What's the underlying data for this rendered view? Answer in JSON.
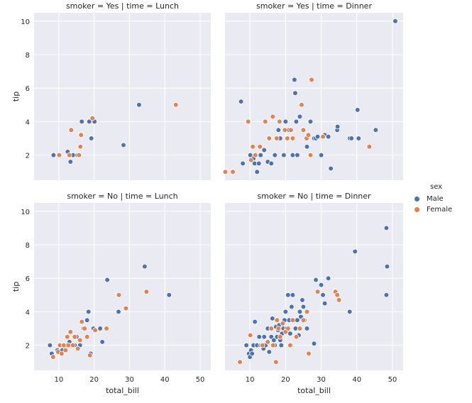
{
  "chart_data": {
    "type": "scatter",
    "xlabel": "total_bill",
    "ylabel": "tip",
    "xlim": [
      3,
      53
    ],
    "ylim": [
      0.5,
      10.5
    ],
    "xticks": [
      10,
      20,
      30,
      40,
      50
    ],
    "yticks": [
      2,
      4,
      6,
      8,
      10
    ],
    "grid": true,
    "legend": {
      "title": "sex",
      "placement": "right",
      "entries": [
        {
          "name": "Male",
          "color": "#4c72b0"
        },
        {
          "name": "Female",
          "color": "#dd8452"
        }
      ]
    },
    "panels": [
      {
        "title": "smoker = Yes | time = Lunch",
        "series": [
          {
            "name": "Male",
            "points": [
              [
                8.5,
                2.0
              ],
              [
                12.5,
                2.2
              ],
              [
                14,
                2.0
              ],
              [
                13.3,
                1.6
              ],
              [
                15.3,
                2.0
              ],
              [
                16.5,
                4.0
              ],
              [
                18.6,
                4.0
              ],
              [
                19.2,
                3.0
              ],
              [
                20.1,
                4.0
              ],
              [
                28.3,
                2.6
              ],
              [
                32.7,
                5.0
              ]
            ]
          },
          {
            "name": "Female",
            "points": [
              [
                10.1,
                2.0
              ],
              [
                13.5,
                3.5
              ],
              [
                13.0,
                2.0
              ],
              [
                15.7,
                2.0
              ],
              [
                16.1,
                2.5
              ],
              [
                16.3,
                3.2
              ],
              [
                19.5,
                4.2
              ],
              [
                43.1,
                5.0
              ]
            ]
          }
        ]
      },
      {
        "title": "smoker = Yes | time = Dinner",
        "series": [
          {
            "name": "Male",
            "points": [
              [
                7.5,
                5.2
              ],
              [
                8.0,
                1.5
              ],
              [
                10.1,
                2.0
              ],
              [
                11.0,
                1.8
              ],
              [
                11.3,
                1.5
              ],
              [
                12.0,
                1.0
              ],
              [
                12.5,
                1.5
              ],
              [
                13.0,
                2.0
              ],
              [
                14.0,
                2.3
              ],
              [
                15.0,
                1.6
              ],
              [
                15.5,
                3.0
              ],
              [
                16.0,
                1.5
              ],
              [
                17.0,
                2.0
              ],
              [
                18.0,
                3.5
              ],
              [
                18.5,
                3.0
              ],
              [
                19.5,
                2.0
              ],
              [
                20.0,
                4.0
              ],
              [
                21.0,
                3.5
              ],
              [
                22.0,
                2.0
              ],
              [
                22.5,
                6.5
              ],
              [
                22.7,
                5.7
              ],
              [
                23.0,
                4.0
              ],
              [
                23.3,
                2.0
              ],
              [
                24.0,
                4.3
              ],
              [
                25.0,
                3.5
              ],
              [
                26.0,
                2.5
              ],
              [
                27.0,
                4.0
              ],
              [
                28.0,
                3.0
              ],
              [
                28.5,
                3.0
              ],
              [
                29.0,
                3.1
              ],
              [
                30.0,
                2.0
              ],
              [
                31.0,
                3.2
              ],
              [
                32.0,
                3.1
              ],
              [
                32.7,
                1.2
              ],
              [
                34.5,
                3.5
              ],
              [
                34.6,
                3.7
              ],
              [
                38.0,
                3.0
              ],
              [
                38.5,
                3.0
              ],
              [
                40.2,
                4.7
              ],
              [
                40.5,
                3.0
              ],
              [
                45.3,
                3.5
              ],
              [
                50.8,
                10.0
              ]
            ]
          },
          {
            "name": "Female",
            "points": [
              [
                3.1,
                1.0
              ],
              [
                5.2,
                1.0
              ],
              [
                9.5,
                4.0
              ],
              [
                10.3,
                1.7
              ],
              [
                10.8,
                2.5
              ],
              [
                11.5,
                2.0
              ],
              [
                12.8,
                2.5
              ],
              [
                14.3,
                4.0
              ],
              [
                15.4,
                3.0
              ],
              [
                16.4,
                4.3
              ],
              [
                17.5,
                3.0
              ],
              [
                18.3,
                4.0
              ],
              [
                19.8,
                3.5
              ],
              [
                20.5,
                3.0
              ],
              [
                21.5,
                3.5
              ],
              [
                22.0,
                3.0
              ],
              [
                24.5,
                5.0
              ],
              [
                25.0,
                3.5
              ],
              [
                25.9,
                3.0
              ],
              [
                26.4,
                3.2
              ],
              [
                27.0,
                2.0
              ],
              [
                27.3,
                6.5
              ],
              [
                30.5,
                3.1
              ],
              [
                43.5,
                2.5
              ]
            ]
          }
        ]
      },
      {
        "title": "smoker = No | time = Lunch",
        "series": [
          {
            "name": "Male",
            "points": [
              [
                7.5,
                2.0
              ],
              [
                8.0,
                1.5
              ],
              [
                9.6,
                1.7
              ],
              [
                10.3,
                2.0
              ],
              [
                11.0,
                1.7
              ],
              [
                12.0,
                2.0
              ],
              [
                13.0,
                2.2
              ],
              [
                13.8,
                2.0
              ],
              [
                14.5,
                2.0
              ],
              [
                15.0,
                2.5
              ],
              [
                16.0,
                2.0
              ],
              [
                17.0,
                3.0
              ],
              [
                18.0,
                3.5
              ],
              [
                18.4,
                4.0
              ],
              [
                19.0,
                1.5
              ],
              [
                19.8,
                3.0
              ],
              [
                20.5,
                2.9
              ],
              [
                21.7,
                3.0
              ],
              [
                22.3,
                2.2
              ],
              [
                23.7,
                5.9
              ],
              [
                26.9,
                4.0
              ],
              [
                34.3,
                6.7
              ],
              [
                41.2,
                5.0
              ]
            ]
          },
          {
            "name": "Female",
            "points": [
              [
                8.4,
                1.3
              ],
              [
                9.8,
                1.6
              ],
              [
                10.3,
                2.0
              ],
              [
                10.8,
                1.5
              ],
              [
                11.4,
                2.0
              ],
              [
                11.9,
                1.7
              ],
              [
                12.4,
                2.5
              ],
              [
                12.7,
                2.0
              ],
              [
                13.3,
                2.8
              ],
              [
                14.0,
                2.0
              ],
              [
                14.5,
                2.5
              ],
              [
                15.4,
                1.8
              ],
              [
                16.0,
                2.3
              ],
              [
                16.5,
                3.4
              ],
              [
                17.3,
                3.0
              ],
              [
                18.0,
                2.5
              ],
              [
                18.8,
                1.4
              ],
              [
                20.3,
                2.9
              ],
              [
                23.5,
                3.0
              ],
              [
                27.0,
                5.0
              ],
              [
                29.0,
                4.2
              ],
              [
                34.8,
                5.2
              ]
            ]
          }
        ]
      },
      {
        "title": "smoker = No | time = Dinner",
        "series": [
          {
            "name": "Male",
            "points": [
              [
                9.0,
                2.0
              ],
              [
                9.7,
                1.5
              ],
              [
                10.0,
                1.3
              ],
              [
                10.3,
                1.7
              ],
              [
                10.6,
                1.5
              ],
              [
                11.0,
                2.0
              ],
              [
                11.4,
                3.4
              ],
              [
                12.0,
                2.0
              ],
              [
                12.6,
                2.5
              ],
              [
                13.0,
                2.0
              ],
              [
                13.4,
                2.0
              ],
              [
                13.8,
                1.8
              ],
              [
                14.0,
                2.5
              ],
              [
                14.4,
                2.0
              ],
              [
                15.0,
                3.0
              ],
              [
                15.4,
                1.6
              ],
              [
                16.0,
                2.5
              ],
              [
                16.3,
                3.6
              ],
              [
                16.7,
                2.3
              ],
              [
                17.0,
                2.0
              ],
              [
                17.3,
                3.1
              ],
              [
                17.6,
                2.5
              ],
              [
                17.9,
                2.9
              ],
              [
                18.2,
                3.2
              ],
              [
                18.5,
                2.3
              ],
              [
                18.8,
                2.0
              ],
              [
                19.0,
                2.7
              ],
              [
                19.4,
                3.0
              ],
              [
                19.7,
                3.5
              ],
              [
                20.0,
                4.0
              ],
              [
                20.3,
                3.0
              ],
              [
                20.7,
                5.0
              ],
              [
                21.0,
                3.5
              ],
              [
                21.3,
                2.7
              ],
              [
                21.7,
                4.3
              ],
              [
                22.0,
                5.0
              ],
              [
                22.4,
                3.5
              ],
              [
                22.8,
                3.0
              ],
              [
                23.3,
                3.5
              ],
              [
                23.7,
                2.6
              ],
              [
                24.0,
                4.0
              ],
              [
                24.3,
                3.7
              ],
              [
                24.7,
                4.7
              ],
              [
                25.0,
                4.3
              ],
              [
                25.3,
                3.5
              ],
              [
                26.0,
                3.0
              ],
              [
                28.0,
                2.1
              ],
              [
                28.5,
                5.9
              ],
              [
                30.0,
                5.6
              ],
              [
                30.5,
                5.0
              ],
              [
                31.0,
                4.5
              ],
              [
                32.0,
                6.0
              ],
              [
                38.0,
                4.0
              ],
              [
                39.5,
                7.6
              ],
              [
                48.3,
                5.0
              ],
              [
                48.3,
                9.0
              ],
              [
                48.5,
                6.7
              ]
            ]
          },
          {
            "name": "Female",
            "points": [
              [
                7.2,
                1.0
              ],
              [
                10.1,
                2.6
              ],
              [
                13.5,
                2.0
              ],
              [
                15.0,
                2.2
              ],
              [
                16.0,
                3.0
              ],
              [
                16.5,
                2.0
              ],
              [
                17.3,
                1.0
              ],
              [
                17.6,
                3.5
              ],
              [
                18.0,
                3.0
              ],
              [
                18.5,
                2.5
              ],
              [
                19.2,
                3.3
              ],
              [
                20.0,
                2.8
              ],
              [
                20.7,
                3.0
              ],
              [
                21.3,
                2.0
              ],
              [
                22.0,
                3.5
              ],
              [
                23.0,
                2.5
              ],
              [
                24.0,
                3.0
              ],
              [
                25.0,
                3.5
              ],
              [
                26.0,
                4.0
              ],
              [
                26.5,
                1.5
              ],
              [
                29.0,
                5.2
              ],
              [
                34.0,
                5.2
              ],
              [
                34.5,
                5.0
              ],
              [
                35.0,
                4.7
              ]
            ]
          }
        ]
      }
    ]
  }
}
